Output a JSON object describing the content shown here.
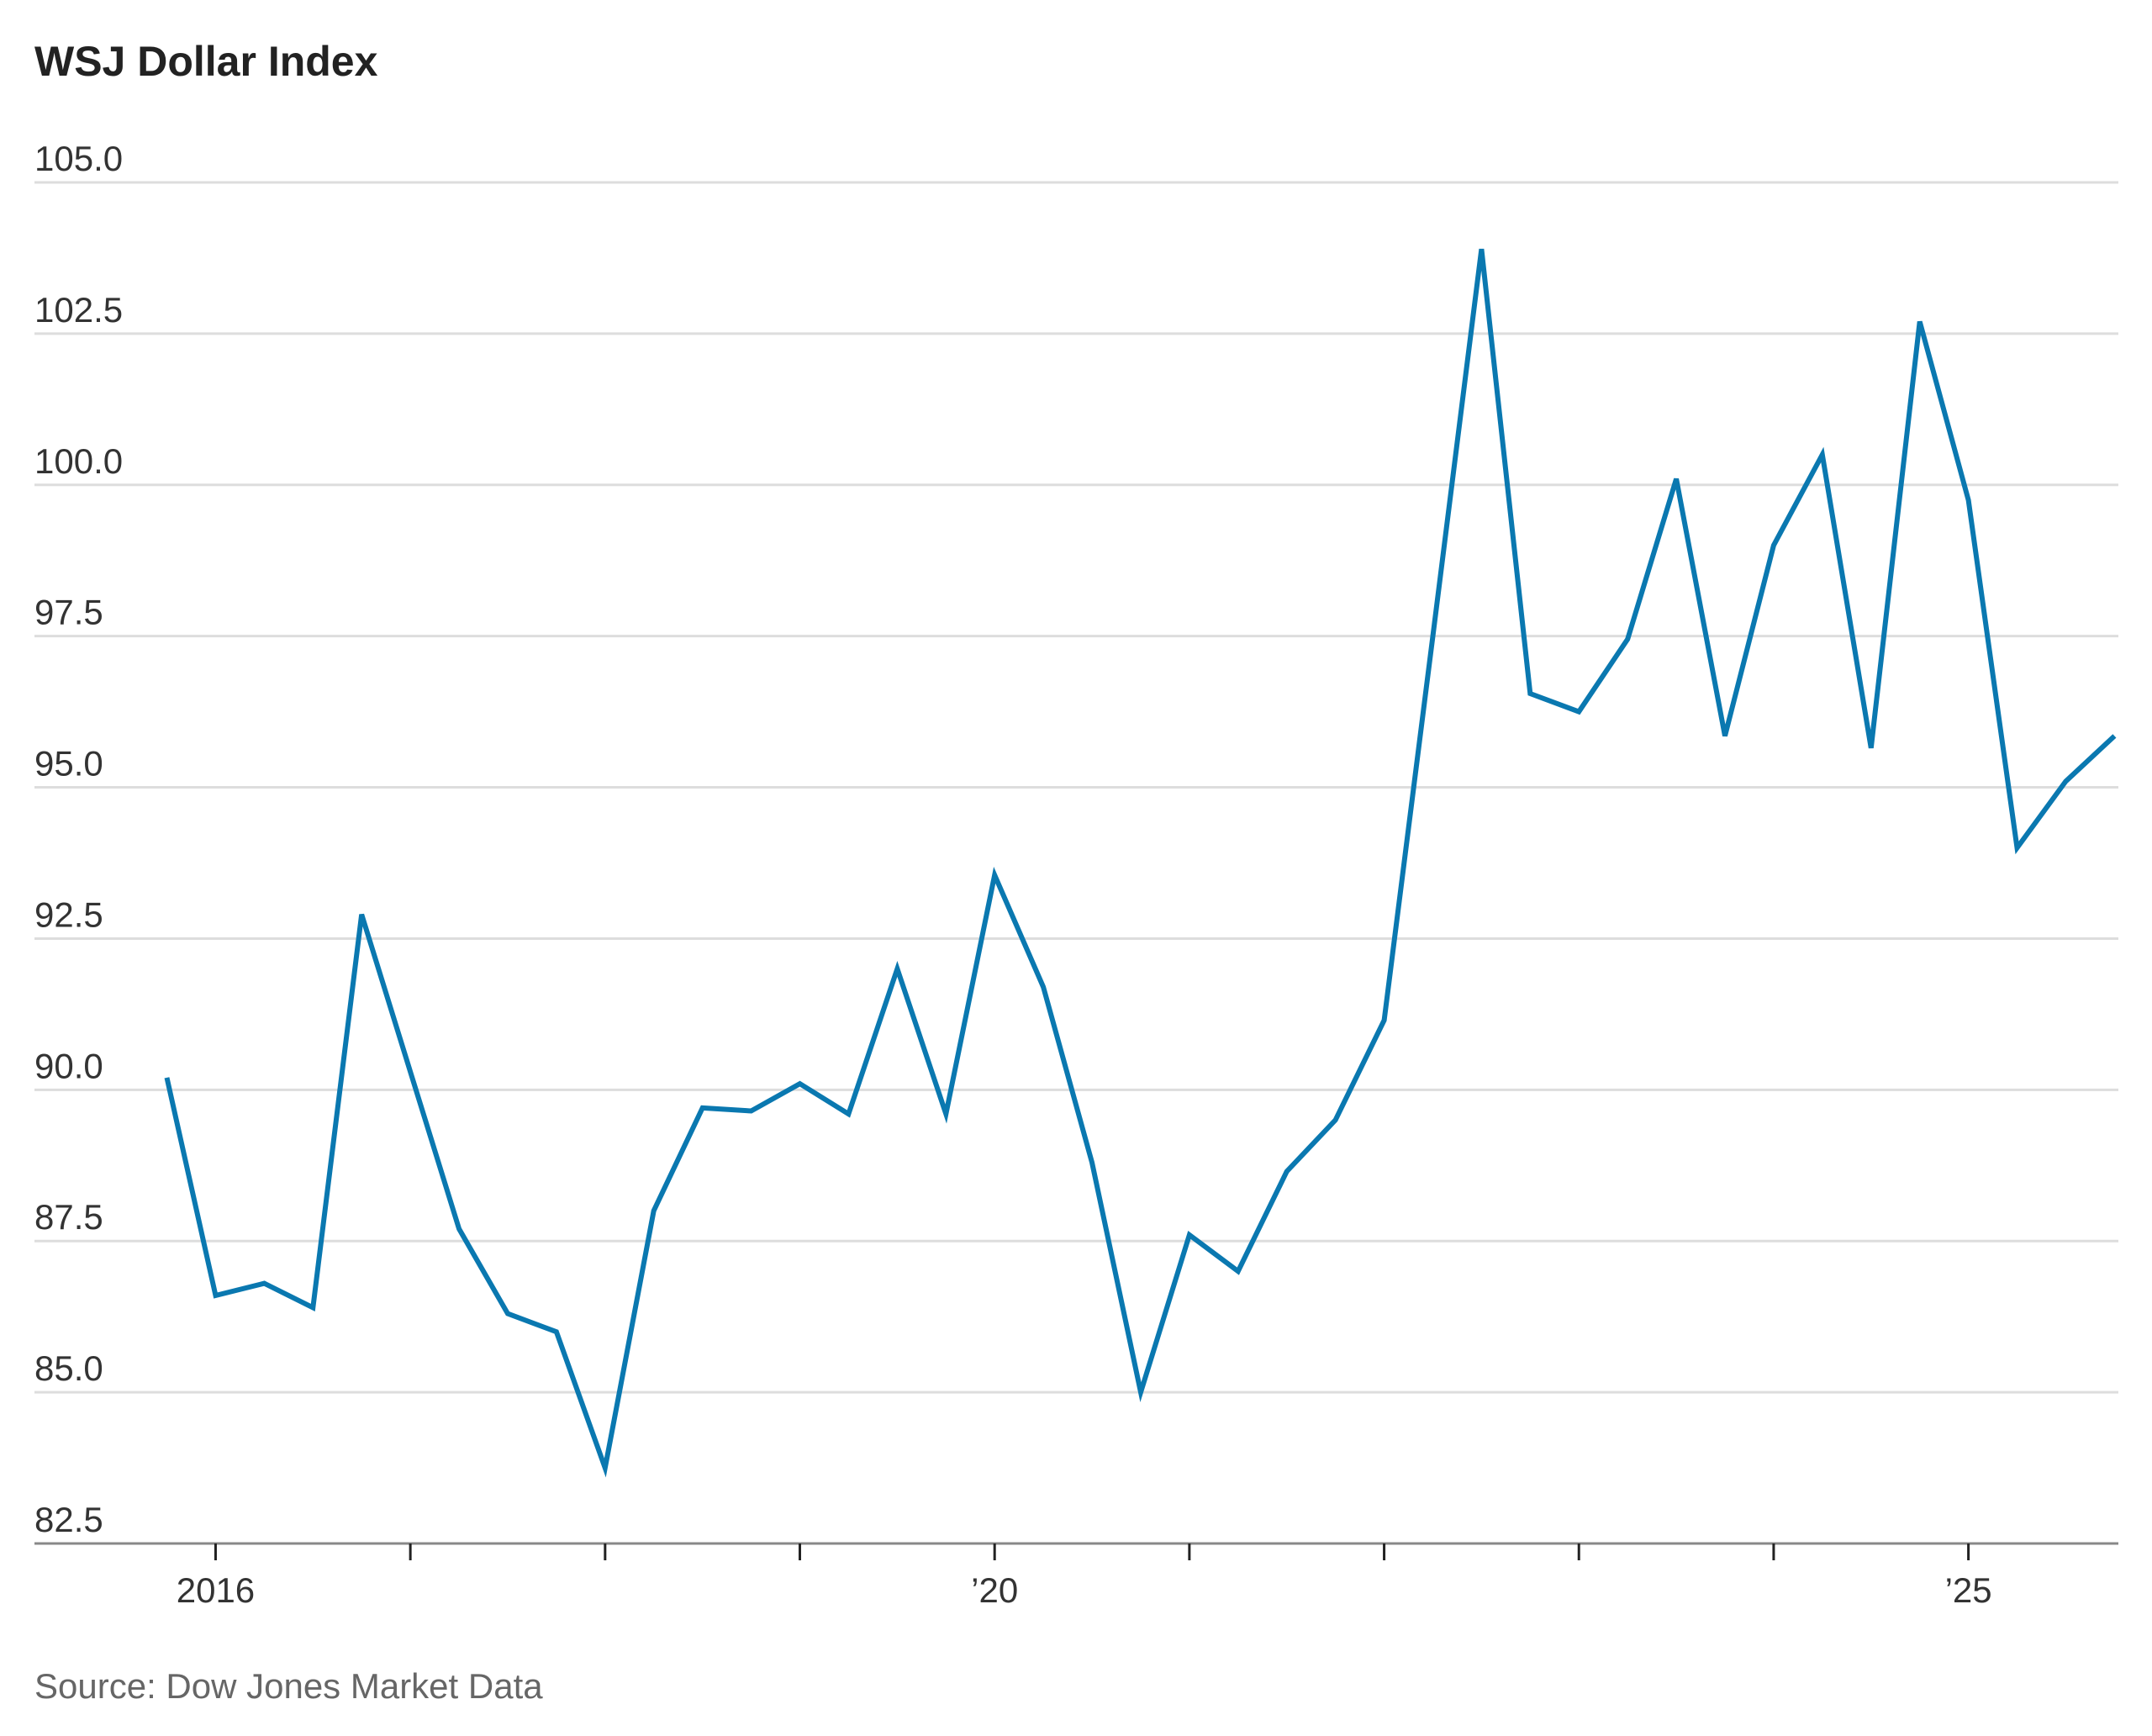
{
  "chart_data": {
    "type": "line",
    "title": "WSJ Dollar Index",
    "source": "Source: Dow Jones Market Data",
    "x": [
      2015.75,
      2016.0,
      2016.25,
      2016.5,
      2016.75,
      2017.0,
      2017.25,
      2017.5,
      2017.75,
      2018.0,
      2018.25,
      2018.5,
      2018.75,
      2019.0,
      2019.25,
      2019.5,
      2019.75,
      2020.0,
      2020.25,
      2020.5,
      2020.75,
      2021.0,
      2021.25,
      2021.5,
      2021.75,
      2022.0,
      2022.25,
      2022.5,
      2022.75,
      2023.0,
      2023.25,
      2023.5,
      2023.75,
      2024.0,
      2024.25,
      2024.5,
      2024.75,
      2025.0,
      2025.25,
      2025.5,
      2025.75
    ],
    "values": [
      90.2,
      86.6,
      86.8,
      86.4,
      92.9,
      90.3,
      87.7,
      86.3,
      86.0,
      83.75,
      88.0,
      89.7,
      89.65,
      90.1,
      89.6,
      92.0,
      89.6,
      93.55,
      91.7,
      88.8,
      85.0,
      87.6,
      87.0,
      88.65,
      89.5,
      91.15,
      97.5,
      103.9,
      96.55,
      96.25,
      97.45,
      100.1,
      95.85,
      99.0,
      100.5,
      95.65,
      102.7,
      99.75,
      94.0,
      95.1,
      95.85
    ],
    "color": "#0a78b0",
    "xlim": [
      2015.07,
      2025.77
    ],
    "xticks": [
      {
        "value": 2016,
        "label": "2016"
      },
      {
        "value": 2017,
        "label": null
      },
      {
        "value": 2018,
        "label": null
      },
      {
        "value": 2019,
        "label": null
      },
      {
        "value": 2020,
        "label": "’20"
      },
      {
        "value": 2021,
        "label": null
      },
      {
        "value": 2022,
        "label": null
      },
      {
        "value": 2023,
        "label": null
      },
      {
        "value": 2024,
        "label": null
      },
      {
        "value": 2025,
        "label": "’25"
      }
    ],
    "ylim": [
      82.5,
      105
    ],
    "yticks": [
      82.5,
      {
        "value": 85,
        "label": "85.0"
      },
      87.5,
      {
        "value": 90,
        "label": "90.0"
      },
      92.5,
      {
        "value": 95,
        "label": "95.0"
      },
      97.5,
      {
        "value": 100,
        "label": "100.0"
      },
      102.5,
      {
        "value": 105,
        "label": "105.0"
      }
    ],
    "grid": true
  }
}
